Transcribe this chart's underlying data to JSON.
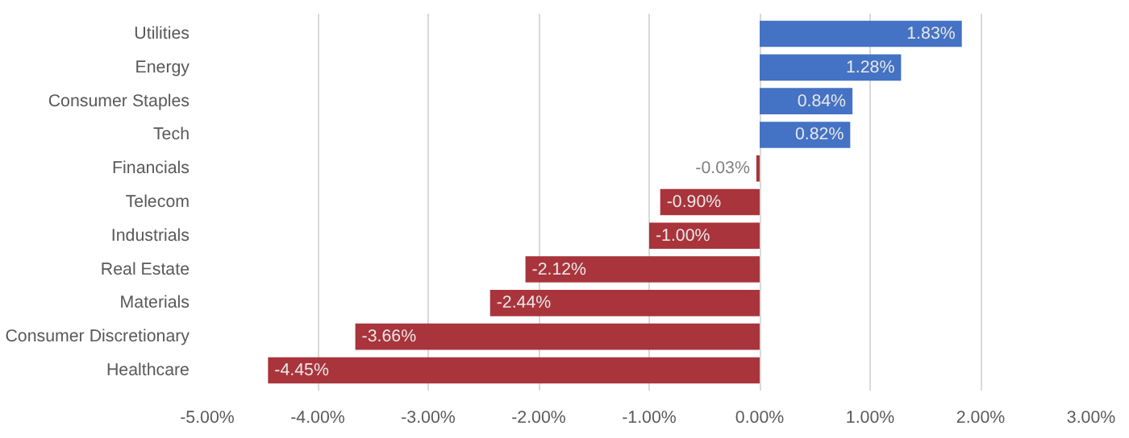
{
  "chart_data": {
    "type": "bar",
    "orientation": "horizontal",
    "categories": [
      "Utilities",
      "Energy",
      "Consumer Staples",
      "Tech",
      "Financials",
      "Telecom",
      "Industrials",
      "Real Estate",
      "Materials",
      "Consumer Discretionary",
      "Healthcare"
    ],
    "values": [
      1.83,
      1.28,
      0.84,
      0.82,
      -0.03,
      -0.9,
      -1.0,
      -2.12,
      -2.44,
      -3.66,
      -4.45
    ],
    "value_labels": [
      "1.83%",
      "1.28%",
      "0.84%",
      "0.82%",
      "-0.03%",
      "-0.90%",
      "-1.00%",
      "-2.12%",
      "-2.44%",
      "-3.66%",
      "-4.45%"
    ],
    "colors": [
      "#4472c4",
      "#4472c4",
      "#4472c4",
      "#4472c4",
      "#a9343c",
      "#a9343c",
      "#a9343c",
      "#a9343c",
      "#a9343c",
      "#a9343c",
      "#a9343c"
    ],
    "xlim": [
      -5,
      3
    ],
    "xticks": [
      {
        "value": -5,
        "label": "-5.00%"
      },
      {
        "value": -4,
        "label": "-4.00%"
      },
      {
        "value": -3,
        "label": "-3.00%"
      },
      {
        "value": -2,
        "label": "-2.00%"
      },
      {
        "value": -1,
        "label": "-1.00%"
      },
      {
        "value": 0,
        "label": "0.00%"
      },
      {
        "value": 1,
        "label": "1.00%"
      },
      {
        "value": 2,
        "label": "2.00%"
      },
      {
        "value": 3,
        "label": "3.00%"
      }
    ],
    "grid": "x"
  }
}
